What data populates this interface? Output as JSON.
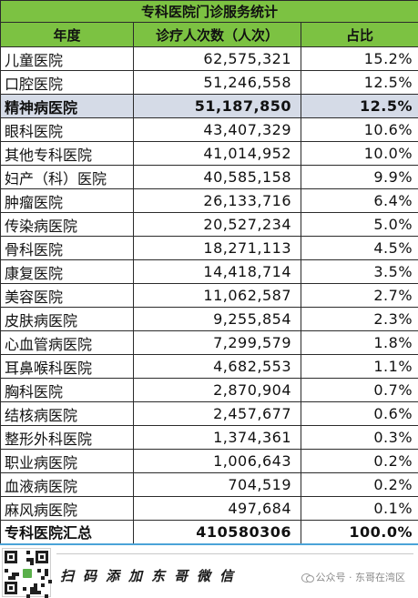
{
  "table": {
    "title": "专科医院门诊服务统计",
    "headers": [
      "年度",
      "诊疗人次数（人次）",
      "占比"
    ],
    "rows": [
      {
        "name": "儿童医院",
        "visits": "62,575,321",
        "share": "15.2%"
      },
      {
        "name": "口腔医院",
        "visits": "51,246,558",
        "share": "12.5%"
      },
      {
        "name": "精神病医院",
        "visits": "51,187,850",
        "share": "12.5%",
        "highlight": true
      },
      {
        "name": "眼科医院",
        "visits": "43,407,329",
        "share": "10.6%"
      },
      {
        "name": "其他专科医院",
        "visits": "41,014,952",
        "share": "10.0%"
      },
      {
        "name": "妇产（科）医院",
        "visits": "40,585,158",
        "share": "9.9%"
      },
      {
        "name": "肿瘤医院",
        "visits": "26,133,716",
        "share": "6.4%"
      },
      {
        "name": "传染病医院",
        "visits": "20,527,234",
        "share": "5.0%"
      },
      {
        "name": "骨科医院",
        "visits": "18,271,113",
        "share": "4.5%"
      },
      {
        "name": "康复医院",
        "visits": "14,418,714",
        "share": "3.5%"
      },
      {
        "name": "美容医院",
        "visits": "11,062,587",
        "share": "2.7%"
      },
      {
        "name": "皮肤病医院",
        "visits": "9,255,854",
        "share": "2.3%"
      },
      {
        "name": "心血管病医院",
        "visits": "7,299,579",
        "share": "1.8%"
      },
      {
        "name": "耳鼻喉科医院",
        "visits": "4,682,553",
        "share": "1.1%"
      },
      {
        "name": "胸科医院",
        "visits": "2,870,904",
        "share": "0.7%"
      },
      {
        "name": "结核病医院",
        "visits": "2,457,677",
        "share": "0.6%"
      },
      {
        "name": "整形外科医院",
        "visits": "1,374,361",
        "share": "0.3%"
      },
      {
        "name": "职业病医院",
        "visits": "1,006,643",
        "share": "0.2%"
      },
      {
        "name": "血液病医院",
        "visits": "704,519",
        "share": "0.2%"
      },
      {
        "name": "麻风病医院",
        "visits": "497,684",
        "share": "0.1%"
      }
    ],
    "total": {
      "name": "专科医院汇总",
      "visits": "410580306",
      "share": "100.0%"
    }
  },
  "footer": {
    "scan_text": "扫码添加东哥微信",
    "watermark": "公众号 · 东哥在湾区",
    "icons": [
      "qr-code-icon",
      "wechat-icon"
    ]
  },
  "colors": {
    "header_bg": "#7cc242",
    "highlight_row_bg": "#d5dbe7",
    "total_underline": "#4aa3d8",
    "border": "#2b2b2b"
  }
}
